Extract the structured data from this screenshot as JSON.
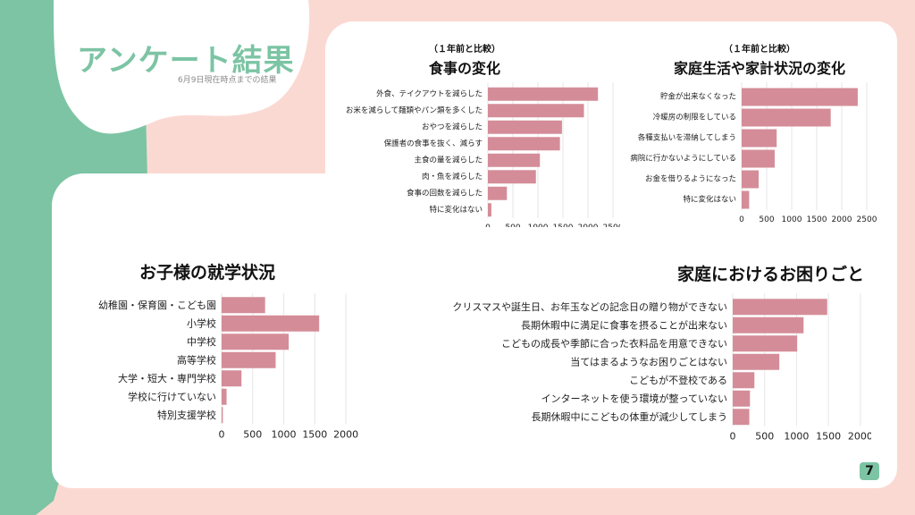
{
  "header": {
    "title": "アンケート結果",
    "subtitle": "6月9日現在時点までの結果"
  },
  "charts": {
    "food": {
      "subtitle": "（１年前と比較）",
      "title": "食事の変化"
    },
    "household": {
      "subtitle": "（１年前と比較）",
      "title": "家庭生活や家計状況の変化"
    },
    "school": {
      "title": "お子様の就学状況"
    },
    "troubles": {
      "title": "家庭におけるお困りごと"
    }
  },
  "page_number": "7",
  "colors": {
    "bar": "#d48d98",
    "accent_green": "#7cc4a4",
    "background_pink": "#fbd9d3",
    "grid": "#e6e6e6"
  },
  "chart_data": [
    {
      "id": "food",
      "type": "bar",
      "orientation": "horizontal",
      "title": "食事の変化",
      "subtitle": "（１年前と比較）",
      "categories": [
        "外食、テイクアウトを減らした",
        "お米を減らして麺類やパン類を多くした",
        "おやつを減らした",
        "保護者の食事を抜く、減らす",
        "主食の量を減らした",
        "肉・魚を減らした",
        "食事の回数を減らした",
        "特に変化はない"
      ],
      "values": [
        2200,
        1920,
        1480,
        1440,
        1040,
        960,
        380,
        70
      ],
      "xlim": [
        0,
        2500
      ],
      "xticks": [
        0,
        500,
        1000,
        1500,
        2000,
        2500
      ],
      "grid": "vertical"
    },
    {
      "id": "household",
      "type": "bar",
      "orientation": "horizontal",
      "title": "家庭生活や家計状況の変化",
      "subtitle": "（１年前と比較）",
      "categories": [
        "貯金が出来なくなった",
        "冷暖房の制限をしている",
        "各種支払いを滞納してしまう",
        "病院に行かないようにしている",
        "お金を借りるようになった",
        "特に変化はない"
      ],
      "values": [
        2320,
        1780,
        700,
        660,
        340,
        150
      ],
      "xlim": [
        0,
        2500
      ],
      "xticks": [
        0,
        500,
        1000,
        1500,
        2000,
        2500
      ],
      "grid": "vertical"
    },
    {
      "id": "school",
      "type": "bar",
      "orientation": "horizontal",
      "title": "お子様の就学状況",
      "categories": [
        "幼稚園・保育園・こども園",
        "小学校",
        "中学校",
        "高等学校",
        "大学・短大・専門学校",
        "学校に行けていない",
        "特別支援学校"
      ],
      "values": [
        700,
        1570,
        1080,
        870,
        320,
        80,
        20
      ],
      "xlim": [
        0,
        2200
      ],
      "xticks": [
        0,
        500,
        1000,
        1500,
        2000
      ],
      "grid": "vertical"
    },
    {
      "id": "troubles",
      "type": "bar",
      "orientation": "horizontal",
      "title": "家庭におけるお困りごと",
      "categories": [
        "クリスマスや誕生日、お年玉などの記念日の贈り物ができない",
        "長期休暇中に満足に食事を摂ることが出来ない",
        "こどもの成長や季節に合った衣料品を用意できない",
        "当てはまるようなお困りごとはない",
        "こどもが不登校である",
        "インターネットを使う環境が整っていない",
        "長期休暇中にこどもの体重が減少してしまう"
      ],
      "values": [
        1480,
        1110,
        1010,
        730,
        340,
        270,
        260
      ],
      "xlim": [
        0,
        2100
      ],
      "xticks": [
        0,
        500,
        1000,
        1500,
        2000
      ],
      "grid": "vertical"
    }
  ]
}
